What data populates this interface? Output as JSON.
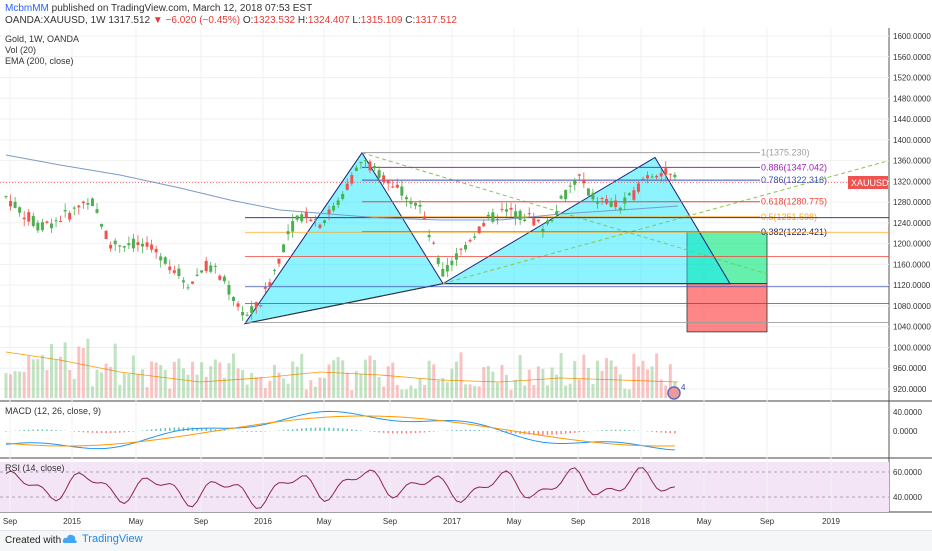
{
  "header": {
    "author": "McbmMM",
    "published": "published on TradingView.com, March 12, 2018 07:53 EST",
    "symbol": "OANDA:XAUUSD, 1W",
    "last": "1317.512",
    "change_arrow": "▼",
    "change": "−6.020 (−0.45%)",
    "o_label": "O:",
    "o_value": "1323.532",
    "h_label": "H:",
    "h_value": "1324.407",
    "l_label": "L:",
    "l_value": "1315.109",
    "c_label": "C:",
    "c_value": "1317.512"
  },
  "legend": {
    "main": "Gold, 1W, OANDA",
    "vol": "Vol (20)",
    "ema": "EMA (200, close)",
    "macd": "MACD (12, 26, close, 9)",
    "rsi": "RSI (14, close)"
  },
  "footer": {
    "created_with": "Created with",
    "brand": "TradingView"
  },
  "colors": {
    "up": "#4caf50",
    "down": "#ef5350",
    "pattern_fill": "#00e5ff",
    "ema": "#7a9cc6",
    "macd": "#2196f3",
    "signal": "#ff9800",
    "rsi": "#8e244d",
    "rsi_bg": "#f3e5f5",
    "target_green": "#00e676",
    "stop_red": "#ff5252",
    "price_tag": "#ef5350"
  },
  "chart_data": {
    "type": "candlestick",
    "timeframe": "1W",
    "price_axis": [
      "1600.0000",
      "1560.0000",
      "1520.0000",
      "1480.0000",
      "1440.0000",
      "1400.0000",
      "1360.0000",
      "1320.0000",
      "1280.0000",
      "1240.0000",
      "1200.0000",
      "1160.0000",
      "1120.0000",
      "1080.0000",
      "1040.0000",
      "1000.0000",
      "960.0000",
      "920.0000"
    ],
    "price_ylim": [
      900,
      1620
    ],
    "time_axis": [
      "Sep",
      "2015",
      "May",
      "Sep",
      "2016",
      "May",
      "Sep",
      "2017",
      "May",
      "Sep",
      "2018",
      "May",
      "Sep",
      "2019"
    ],
    "price_tag": "XAUUSD",
    "fib_levels": [
      {
        "label": "1(1375.230)",
        "price": 1375.23,
        "color": "#9e9e9e"
      },
      {
        "label": "0.886(1347.042)",
        "price": 1347.042,
        "color": "#9c27b0"
      },
      {
        "label": "0.786(1322.316)",
        "price": 1322.316,
        "color": "#3f51b5"
      },
      {
        "label": "0.618(1280.775)",
        "price": 1280.775,
        "color": "#f44336"
      },
      {
        "label": "0.5(1251.598)",
        "price": 1251.598,
        "color": "#ffa726"
      },
      {
        "label": "0.382(1222.421)",
        "price": 1222.421,
        "color": "#1a237e"
      }
    ],
    "pattern_points": [
      {
        "date": "2015-12",
        "price": 1046
      },
      {
        "date": "2016-07",
        "price": 1375
      },
      {
        "date": "2016-12",
        "price": 1123
      },
      {
        "date": "2018-01",
        "price": 1366
      },
      {
        "date": "2018-05",
        "price": 1123
      }
    ],
    "target_zone": {
      "top": 1222,
      "bottom": 1123
    },
    "stop_zone": {
      "top": 1123,
      "bottom": 1030
    },
    "macd_axis": [
      "40.0000",
      "0.0000"
    ],
    "rsi_axis": [
      "60.0000",
      "40.0000"
    ],
    "volume_badge": "4"
  }
}
